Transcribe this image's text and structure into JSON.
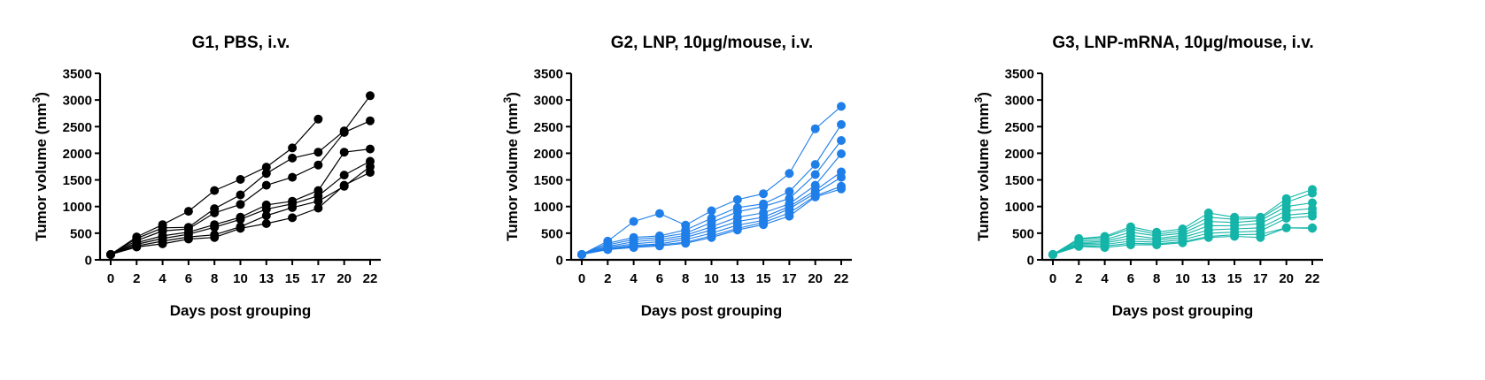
{
  "chart_data": [
    {
      "type": "line",
      "title": "G1, PBS, i.v.",
      "xlabel": "Days post grouping",
      "ylabel": "Tumor volume (mm",
      "ylabel_superscript": "3",
      "ylabel_close": ")",
      "x": [
        0,
        2,
        4,
        6,
        8,
        10,
        13,
        15,
        17,
        20,
        22
      ],
      "ylim": [
        0,
        3500
      ],
      "yticks": [
        0,
        500,
        1000,
        1500,
        2000,
        2500,
        3000,
        3500
      ],
      "color": "#000000",
      "series": [
        {
          "values": [
            100,
            430,
            660,
            910,
            1300,
            1510,
            1740,
            2100,
            2640,
            null,
            null
          ]
        },
        {
          "values": [
            100,
            400,
            600,
            610,
            960,
            1220,
            1620,
            1910,
            2020,
            2420,
            3080
          ]
        },
        {
          "values": [
            100,
            360,
            540,
            580,
            880,
            1040,
            1400,
            1550,
            1780,
            2390,
            2610
          ]
        },
        {
          "values": [
            100,
            320,
            450,
            520,
            660,
            800,
            1030,
            1100,
            1300,
            2020,
            2080
          ]
        },
        {
          "values": [
            100,
            290,
            400,
            480,
            610,
            760,
            950,
            1050,
            1200,
            1590,
            1850
          ]
        },
        {
          "values": [
            100,
            260,
            350,
            430,
            470,
            620,
            830,
            980,
            1100,
            1380,
            1750
          ]
        },
        {
          "values": [
            100,
            240,
            300,
            390,
            420,
            590,
            680,
            790,
            970,
            1400,
            1640
          ]
        }
      ]
    },
    {
      "type": "line",
      "title": "G2, LNP, 10μg/mouse, i.v.",
      "xlabel": "Days post grouping",
      "ylabel": "Tumor volume (mm",
      "ylabel_superscript": "3",
      "ylabel_close": ")",
      "x": [
        0,
        2,
        4,
        6,
        8,
        10,
        13,
        15,
        17,
        20,
        22
      ],
      "ylim": [
        0,
        3500
      ],
      "yticks": [
        0,
        500,
        1000,
        1500,
        2000,
        2500,
        3000,
        3500
      ],
      "color": "#1f7ee8",
      "series": [
        {
          "values": [
            100,
            350,
            720,
            870,
            650,
            920,
            1130,
            1240,
            1620,
            2460,
            2880
          ]
        },
        {
          "values": [
            100,
            310,
            420,
            450,
            560,
            780,
            980,
            1050,
            1280,
            1790,
            2540
          ]
        },
        {
          "values": [
            100,
            280,
            380,
            420,
            500,
            700,
            900,
            1000,
            1150,
            1600,
            2240
          ]
        },
        {
          "values": [
            100,
            250,
            340,
            380,
            460,
            620,
            800,
            880,
            1050,
            1400,
            1990
          ]
        },
        {
          "values": [
            100,
            230,
            300,
            340,
            420,
            560,
            720,
            800,
            1000,
            1300,
            1650
          ]
        },
        {
          "values": [
            100,
            210,
            270,
            300,
            380,
            500,
            650,
            740,
            960,
            1250,
            1550
          ]
        },
        {
          "values": [
            100,
            200,
            250,
            280,
            330,
            450,
            590,
            700,
            880,
            1200,
            1380
          ]
        },
        {
          "values": [
            100,
            190,
            230,
            260,
            310,
            420,
            560,
            660,
            820,
            1180,
            1330
          ]
        }
      ]
    },
    {
      "type": "line",
      "title": "G3, LNP-mRNA, 10μg/mouse, i.v.",
      "xlabel": "Days post grouping",
      "ylabel": "Tumor volume (mm",
      "ylabel_superscript": "3",
      "ylabel_close": ")",
      "x": [
        0,
        2,
        4,
        6,
        8,
        10,
        13,
        15,
        17,
        20,
        22
      ],
      "ylim": [
        0,
        3500
      ],
      "yticks": [
        0,
        500,
        1000,
        1500,
        2000,
        2500,
        3000,
        3500
      ],
      "color": "#14b5a8",
      "series": [
        {
          "values": [
            100,
            400,
            440,
            620,
            520,
            580,
            880,
            800,
            800,
            1150,
            1320
          ]
        },
        {
          "values": [
            100,
            380,
            420,
            580,
            480,
            540,
            800,
            760,
            780,
            1080,
            1250
          ]
        },
        {
          "values": [
            100,
            350,
            380,
            520,
            450,
            500,
            720,
            700,
            740,
            1000,
            1070
          ]
        },
        {
          "values": [
            100,
            320,
            350,
            460,
            400,
            460,
            640,
            640,
            680,
            920,
            960
          ]
        },
        {
          "values": [
            100,
            300,
            320,
            400,
            370,
            420,
            560,
            580,
            600,
            840,
            880
          ]
        },
        {
          "values": [
            100,
            280,
            290,
            350,
            330,
            380,
            500,
            520,
            540,
            780,
            820
          ]
        },
        {
          "values": [
            100,
            260,
            260,
            310,
            300,
            340,
            440,
            470,
            480,
            600,
            600
          ]
        },
        {
          "values": [
            100,
            250,
            230,
            280,
            280,
            320,
            420,
            440,
            420,
            600,
            590
          ]
        }
      ]
    }
  ]
}
